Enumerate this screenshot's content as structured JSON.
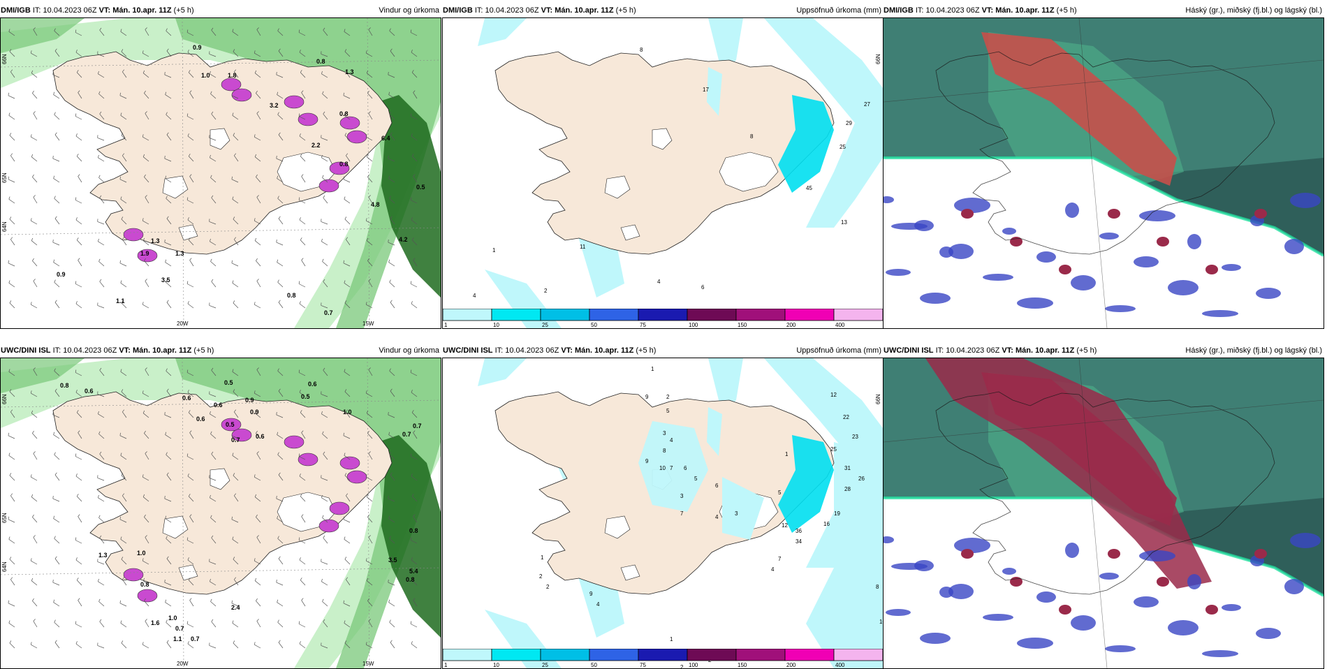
{
  "panels": [
    {
      "source": "DMI/IGB",
      "it_label": "IT:",
      "it_value": "10.04.2023 06Z",
      "vt_label": "VT:",
      "vt_value": "Mán. 10.apr. 11Z",
      "lead": "(+5 h)",
      "product": "Vindur og úrkoma",
      "kind": "wind",
      "lon_labels": [
        "20W",
        "15W"
      ],
      "lat_labels": [
        "66N",
        "64N",
        "65N"
      ],
      "values": [
        "0.9",
        "1.0",
        "1.8",
        "3.2",
        "0.8",
        "1.3",
        "0.8",
        "2.2",
        "0.8",
        "6.4",
        "0.5",
        "4.2",
        "1.3",
        "1.3",
        "0.9",
        "0.8",
        "0.7",
        "4.8",
        "1.9",
        "3.5",
        "1.1"
      ]
    },
    {
      "source": "DMI/IGB",
      "it_label": "IT:",
      "it_value": "10.04.2023 06Z",
      "vt_label": "VT:",
      "vt_value": "Mán. 10.apr. 11Z",
      "lead": "(+5 h)",
      "product": "Uppsöfnuð úrkoma (mm)",
      "kind": "precip",
      "lat_labels": [
        "66N"
      ],
      "values": [
        "8",
        "17",
        "27",
        "29",
        "25",
        "8",
        "45",
        "13",
        "11",
        "1",
        "2",
        "4",
        "4",
        "6"
      ]
    },
    {
      "source": "DMI/IGB",
      "it_label": "IT:",
      "it_value": "10.04.2023 06Z",
      "vt_label": "VT:",
      "vt_value": "Mán. 10.apr. 11Z",
      "lead": "(+5 h)",
      "product": "Háský (gr.), miðský (fj.bl.) og lágský (bl.)",
      "kind": "cloud"
    },
    {
      "source": "UWC/DINI ISL",
      "it_label": "IT:",
      "it_value": "10.04.2023 06Z",
      "vt_label": "VT:",
      "vt_value": "Mán. 10.apr. 11Z",
      "lead": "(+5 h)",
      "product": "Vindur og úrkoma",
      "kind": "wind",
      "lon_labels": [
        "20W",
        "15W"
      ],
      "lat_labels": [
        "66N",
        "64N",
        "65N"
      ],
      "values": [
        "0.8",
        "0.6",
        "0.5",
        "0.9",
        "0.6",
        "0.9",
        "0.5",
        "0.6",
        "0.7",
        "0.7",
        "1.0",
        "0.7",
        "0.5",
        "0.6",
        "0.6",
        "0.8",
        "1.3",
        "1.0",
        "0.8",
        "1.6",
        "1.0",
        "0.7",
        "1.1",
        "0.7",
        "5.4",
        "3.5",
        "0.8",
        "2.4",
        "0.6"
      ]
    },
    {
      "source": "UWC/DINI ISL",
      "it_label": "IT:",
      "it_value": "10.04.2023 06Z",
      "vt_label": "VT:",
      "vt_value": "Mán. 10.apr. 11Z",
      "lead": "(+5 h)",
      "product": "Uppsöfnuð úrkoma (mm)",
      "kind": "precip",
      "lat_labels": [
        "66N"
      ],
      "values": [
        "1",
        "9",
        "2",
        "5",
        "3",
        "4",
        "8",
        "9",
        "7",
        "10",
        "6",
        "3",
        "5",
        "7",
        "4",
        "6",
        "3",
        "5",
        "12",
        "22",
        "23",
        "31",
        "26",
        "28",
        "19",
        "16",
        "36",
        "34",
        "12",
        "7",
        "4",
        "8",
        "10",
        "1",
        "2",
        "2",
        "9",
        "4",
        "1",
        "1",
        "2",
        "2",
        "1",
        "3",
        "25",
        "1"
      ]
    },
    {
      "source": "UWC/DINI ISL",
      "it_label": "IT:",
      "it_value": "10.04.2023 06Z",
      "vt_label": "VT:",
      "vt_value": "Mán. 10.apr. 11Z",
      "lead": "(+5 h)",
      "product": "Háský (gr.), miðský (fj.bl.) og lágský (bl.)",
      "kind": "cloud"
    }
  ],
  "colorbar": {
    "labels": [
      "1",
      "10",
      "25",
      "50",
      "75",
      "100",
      "150",
      "200",
      "400"
    ],
    "colors": [
      "#bff7fb",
      "#00e8f2",
      "#00bfe6",
      "#2e63e6",
      "#1a1ab0",
      "#6e0a55",
      "#a0107a",
      "#f000b4",
      "#f4b4ee"
    ]
  },
  "colors": {
    "land": "#f7e8d9",
    "ocean": "#ffffff",
    "green_light": "#c9f0c9",
    "green_mid": "#79c879",
    "green_dark": "#1f6b1f",
    "magenta": "#c94ad0",
    "cyan_light": "#bff7fb",
    "cyan": "#00dff0",
    "cloud_teal": "#3f7f74",
    "cloud_teal_dark": "#2f5f5a",
    "cloud_green": "#4fb08a",
    "cloud_red": "#c6504a",
    "cloud_maroon": "#9a2a4a",
    "cloud_blue": "#3a46c4",
    "cloud_edge": "#22e0a0"
  }
}
